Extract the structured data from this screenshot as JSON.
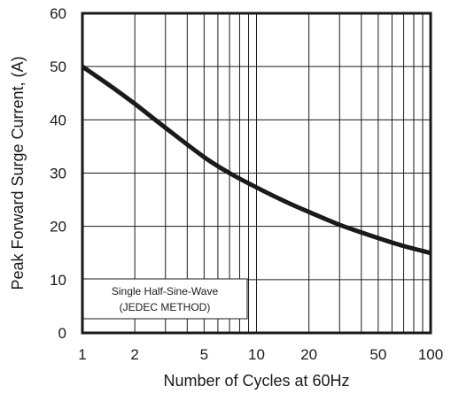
{
  "chart_data": {
    "type": "line",
    "xlabel": "Number of Cycles at 60Hz",
    "ylabel": "Peak Forward Surge Current, (A)",
    "x_scale": "log",
    "xlim": [
      1,
      100
    ],
    "ylim": [
      0,
      60
    ],
    "grid": true,
    "x_ticks": [
      1,
      2,
      5,
      10,
      20,
      50,
      100
    ],
    "y_ticks": [
      0,
      10,
      20,
      30,
      40,
      50,
      60
    ],
    "series": [
      {
        "x": [
          1,
          1.5,
          2,
          3,
          5,
          7,
          10,
          15,
          20,
          30,
          50,
          70,
          100
        ],
        "y": [
          50,
          46,
          43,
          38.5,
          33,
          30,
          27.3,
          24.5,
          22.7,
          20.3,
          17.8,
          16.3,
          15
        ]
      }
    ],
    "annotation": [
      "Single Half-Sine-Wave",
      "(JEDEC METHOD)"
    ]
  }
}
